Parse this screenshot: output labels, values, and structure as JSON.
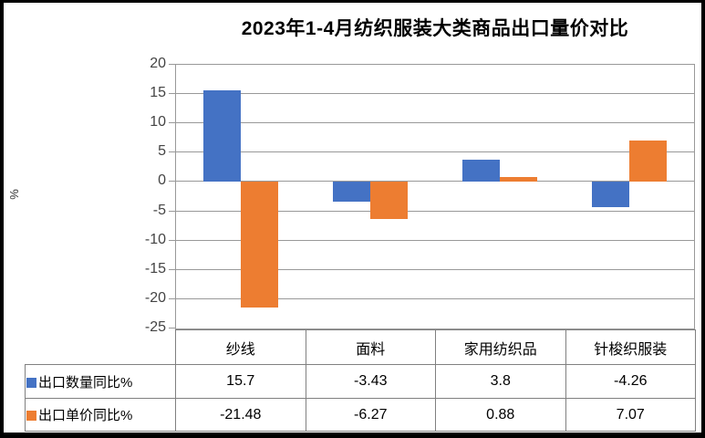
{
  "chart_data": {
    "type": "bar",
    "title": "2023年1-4月纺织服装大类商品出口量价对比",
    "ylabel": "%",
    "xlabel": "",
    "categories": [
      "纱线",
      "面料",
      "家用纺织品",
      "针梭织服装"
    ],
    "series": [
      {
        "name": "出口数量同比%",
        "color": "#4472C4",
        "values": [
          15.7,
          -3.43,
          3.8,
          -4.26
        ]
      },
      {
        "name": "出口单价同比%",
        "color": "#ED7D31",
        "values": [
          -21.48,
          -6.27,
          0.88,
          7.07
        ]
      }
    ],
    "ylim": [
      -25,
      20
    ],
    "ytick_step": 5,
    "yticks": [
      "20",
      "15",
      "10",
      "5",
      "0",
      "-5",
      "-10",
      "-15",
      "-20",
      "-25"
    ],
    "grid": true,
    "legend_position": "table-row-headers",
    "show_data_table": true
  },
  "colors": {
    "series1": "#4472C4",
    "series2": "#ED7D31",
    "grid": "#999999",
    "table_border": "#808080",
    "frame": "#000000",
    "axis_text": "#444444"
  }
}
